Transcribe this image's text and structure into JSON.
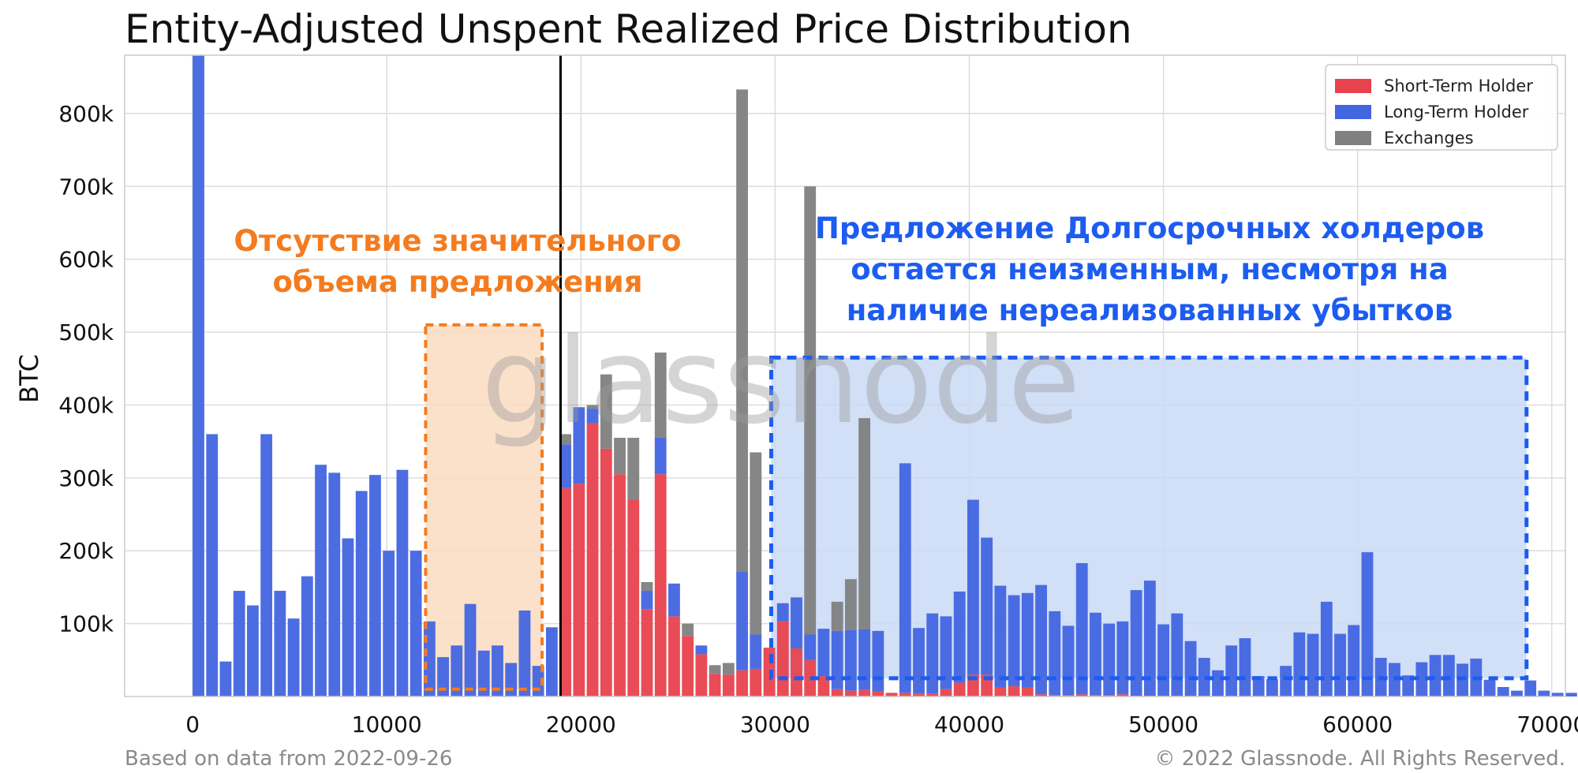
{
  "chart_data": {
    "type": "bar",
    "stacked": true,
    "title": "Entity-Adjusted Unspent Realized Price Distribution",
    "ylabel": "BTC",
    "xlabel": "",
    "xlim": [
      -3500,
      70700
    ],
    "ylim": [
      0,
      880000
    ],
    "x_ticks": [
      0,
      10000,
      20000,
      30000,
      40000,
      50000,
      60000,
      70000
    ],
    "x_tick_labels": [
      "0",
      "10000",
      "20000",
      "30000",
      "40000",
      "50000",
      "60000",
      "70000"
    ],
    "y_ticks": [
      100000,
      200000,
      300000,
      400000,
      500000,
      600000,
      700000,
      800000
    ],
    "y_tick_labels": [
      "100k",
      "200k",
      "300k",
      "400k",
      "500k",
      "600k",
      "700k",
      "800k"
    ],
    "grid": true,
    "legend_position": "top-right",
    "bin_width": 700,
    "vertical_line_x": 18950,
    "series": [
      {
        "name": "Short-Term Holder",
        "color": "#e8424d"
      },
      {
        "name": "Long-Term Holder",
        "color": "#4265e0"
      },
      {
        "name": "Exchanges",
        "color": "#808080"
      }
    ],
    "bins": [
      [
        300,
        0,
        880000,
        0
      ],
      [
        1000,
        0,
        360000,
        0
      ],
      [
        1700,
        0,
        48000,
        0
      ],
      [
        2400,
        0,
        145000,
        0
      ],
      [
        3100,
        0,
        125000,
        0
      ],
      [
        3800,
        0,
        360000,
        0
      ],
      [
        4500,
        0,
        145000,
        0
      ],
      [
        5200,
        0,
        107000,
        0
      ],
      [
        5900,
        0,
        165000,
        0
      ],
      [
        6600,
        0,
        318000,
        0
      ],
      [
        7300,
        0,
        307000,
        0
      ],
      [
        8000,
        0,
        217000,
        0
      ],
      [
        8700,
        0,
        282000,
        0
      ],
      [
        9400,
        0,
        304000,
        0
      ],
      [
        10100,
        0,
        200000,
        0
      ],
      [
        10800,
        0,
        311000,
        0
      ],
      [
        11500,
        0,
        200000,
        0
      ],
      [
        12200,
        0,
        103000,
        0
      ],
      [
        12900,
        0,
        54000,
        0
      ],
      [
        13600,
        0,
        70000,
        0
      ],
      [
        14300,
        0,
        127000,
        0
      ],
      [
        15000,
        0,
        63000,
        0
      ],
      [
        15700,
        0,
        70000,
        0
      ],
      [
        16400,
        0,
        46000,
        0
      ],
      [
        17100,
        0,
        118000,
        0
      ],
      [
        17800,
        0,
        42000,
        0
      ],
      [
        18500,
        0,
        95000,
        0
      ],
      [
        19200,
        286000,
        60000,
        14000
      ],
      [
        19900,
        292000,
        105000,
        0
      ],
      [
        20600,
        375000,
        20000,
        5000
      ],
      [
        21300,
        340000,
        0,
        102000
      ],
      [
        22000,
        305000,
        0,
        50000
      ],
      [
        22700,
        270000,
        0,
        85000
      ],
      [
        23400,
        120000,
        25000,
        12000
      ],
      [
        24100,
        305000,
        50000,
        117000
      ],
      [
        24800,
        110000,
        45000,
        0
      ],
      [
        25500,
        83000,
        0,
        17000
      ],
      [
        26200,
        58000,
        12000,
        0
      ],
      [
        26900,
        31000,
        0,
        12000
      ],
      [
        27600,
        30000,
        0,
        16000
      ],
      [
        28300,
        36000,
        135000,
        662000
      ],
      [
        29000,
        38000,
        47000,
        250000
      ],
      [
        29700,
        67000,
        0,
        0
      ],
      [
        30400,
        103000,
        25000,
        0
      ],
      [
        31100,
        66000,
        70000,
        0
      ],
      [
        31800,
        50000,
        35000,
        615000
      ],
      [
        32500,
        28000,
        65000,
        0
      ],
      [
        33200,
        10000,
        80000,
        40000
      ],
      [
        33900,
        8000,
        83000,
        70000
      ],
      [
        34600,
        9000,
        83000,
        290000
      ],
      [
        35300,
        7000,
        83000,
        0
      ],
      [
        36000,
        5000,
        0,
        0
      ],
      [
        36700,
        5000,
        315000,
        0
      ],
      [
        37400,
        4000,
        90000,
        0
      ],
      [
        38100,
        4000,
        110000,
        0
      ],
      [
        38800,
        10000,
        100000,
        0
      ],
      [
        39500,
        19000,
        125000,
        0
      ],
      [
        40200,
        30000,
        240000,
        0
      ],
      [
        40900,
        30000,
        188000,
        0
      ],
      [
        41600,
        12000,
        140000,
        0
      ],
      [
        42300,
        14000,
        125000,
        0
      ],
      [
        43000,
        12000,
        130000,
        0
      ],
      [
        43700,
        3000,
        150000,
        0
      ],
      [
        44400,
        2000,
        115000,
        0
      ],
      [
        45100,
        2000,
        95000,
        0
      ],
      [
        45800,
        3000,
        180000,
        0
      ],
      [
        46500,
        2000,
        113000,
        0
      ],
      [
        47200,
        2000,
        98000,
        0
      ],
      [
        47900,
        3000,
        100000,
        0
      ],
      [
        48600,
        1000,
        145000,
        0
      ],
      [
        49300,
        1000,
        158000,
        0
      ],
      [
        50000,
        1000,
        98000,
        0
      ],
      [
        50700,
        1000,
        113000,
        0
      ],
      [
        51400,
        1000,
        75000,
        0
      ],
      [
        52100,
        1000,
        52000,
        0
      ],
      [
        52800,
        0,
        36000,
        0
      ],
      [
        53500,
        0,
        70000,
        0
      ],
      [
        54200,
        0,
        80000,
        0
      ],
      [
        54900,
        0,
        28000,
        0
      ],
      [
        55600,
        0,
        24000,
        0
      ],
      [
        56300,
        0,
        42000,
        0
      ],
      [
        57000,
        0,
        88000,
        0
      ],
      [
        57700,
        0,
        86000,
        0
      ],
      [
        58400,
        0,
        130000,
        0
      ],
      [
        59100,
        0,
        86000,
        0
      ],
      [
        59800,
        0,
        98000,
        0
      ],
      [
        60500,
        0,
        198000,
        0
      ],
      [
        61200,
        0,
        53000,
        0
      ],
      [
        61900,
        0,
        46000,
        0
      ],
      [
        62600,
        0,
        29000,
        0
      ],
      [
        63300,
        0,
        47000,
        0
      ],
      [
        64000,
        0,
        57000,
        0
      ],
      [
        64700,
        0,
        57000,
        0
      ],
      [
        65400,
        0,
        45000,
        0
      ],
      [
        66100,
        0,
        52000,
        0
      ],
      [
        66800,
        0,
        23000,
        0
      ],
      [
        67500,
        0,
        13000,
        0
      ],
      [
        68200,
        0,
        8000,
        0
      ],
      [
        68900,
        0,
        22000,
        0
      ],
      [
        69600,
        0,
        8000,
        0
      ],
      [
        70300,
        0,
        5000,
        0
      ],
      [
        71000,
        0,
        5000,
        0
      ]
    ],
    "annotations": [
      {
        "text_lines": [
          "Отсутствие значительного",
          "объема предложения"
        ],
        "color": "#f47b1f",
        "fill": "#fbdcc1",
        "region": {
          "x0": 12000,
          "x1": 18000,
          "y0": 10000,
          "y1": 510000
        }
      },
      {
        "text_lines": [
          "Предложение Долгосрочных холдеров",
          "остается неизменным, несмотря на",
          "наличие нереализованных убытков"
        ],
        "color": "#1d5cf0",
        "fill": "#c9d9f6",
        "region": {
          "x0": 29800,
          "x1": 68700,
          "y0": 25000,
          "y1": 465000
        }
      }
    ]
  },
  "watermark": "glassnode",
  "footer": {
    "left": "Based on data from 2022-09-26",
    "right": "© 2022 Glassnode. All Rights Reserved."
  }
}
